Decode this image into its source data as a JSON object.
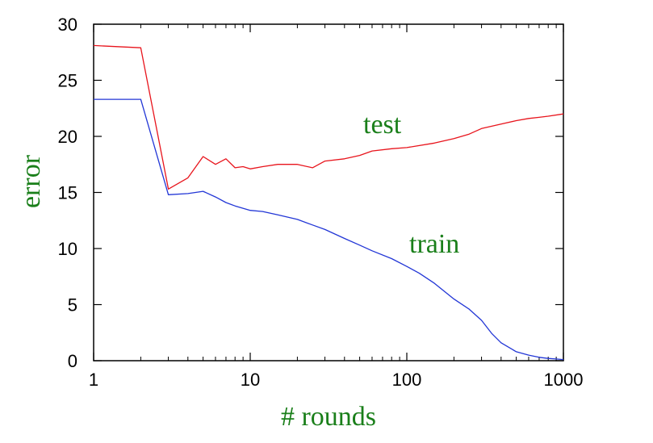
{
  "chart_data": {
    "type": "line",
    "title": "",
    "xlabel": "# rounds",
    "ylabel": "error",
    "xscale": "log",
    "xlim": [
      1,
      1000
    ],
    "ylim": [
      0,
      30
    ],
    "x_ticks": [
      1,
      10,
      100,
      1000
    ],
    "x_tick_labels": [
      "1",
      "10",
      "100",
      "1000"
    ],
    "y_ticks": [
      0,
      5,
      10,
      15,
      20,
      25,
      30
    ],
    "y_tick_labels": [
      "0",
      "5",
      "10",
      "15",
      "20",
      "25",
      "30"
    ],
    "grid": false,
    "label_color": "#1a7f1a",
    "series": [
      {
        "name": "test",
        "color": "#e8141c",
        "x": [
          1,
          2,
          3,
          4,
          5,
          6,
          7,
          8,
          9,
          10,
          12,
          15,
          20,
          25,
          30,
          40,
          50,
          60,
          80,
          100,
          150,
          200,
          250,
          300,
          400,
          500,
          600,
          700,
          800,
          1000
        ],
        "y": [
          28.1,
          27.9,
          15.3,
          16.3,
          18.2,
          17.5,
          18.0,
          17.2,
          17.3,
          17.1,
          17.3,
          17.5,
          17.5,
          17.2,
          17.8,
          18.0,
          18.3,
          18.7,
          18.9,
          19.0,
          19.4,
          19.8,
          20.2,
          20.7,
          21.1,
          21.4,
          21.6,
          21.7,
          21.8,
          22.0
        ]
      },
      {
        "name": "train",
        "color": "#2236d6",
        "x": [
          1,
          2,
          3,
          4,
          5,
          6,
          7,
          8,
          10,
          12,
          15,
          20,
          25,
          30,
          40,
          50,
          60,
          80,
          100,
          120,
          150,
          200,
          250,
          300,
          350,
          400,
          500,
          600,
          700,
          800,
          900,
          1000
        ],
        "y": [
          23.3,
          23.3,
          14.8,
          14.9,
          15.1,
          14.6,
          14.1,
          13.8,
          13.4,
          13.3,
          13.0,
          12.6,
          12.1,
          11.7,
          10.9,
          10.3,
          9.8,
          9.1,
          8.4,
          7.8,
          6.9,
          5.5,
          4.6,
          3.6,
          2.4,
          1.6,
          0.8,
          0.5,
          0.3,
          0.2,
          0.15,
          0.1
        ]
      }
    ]
  }
}
